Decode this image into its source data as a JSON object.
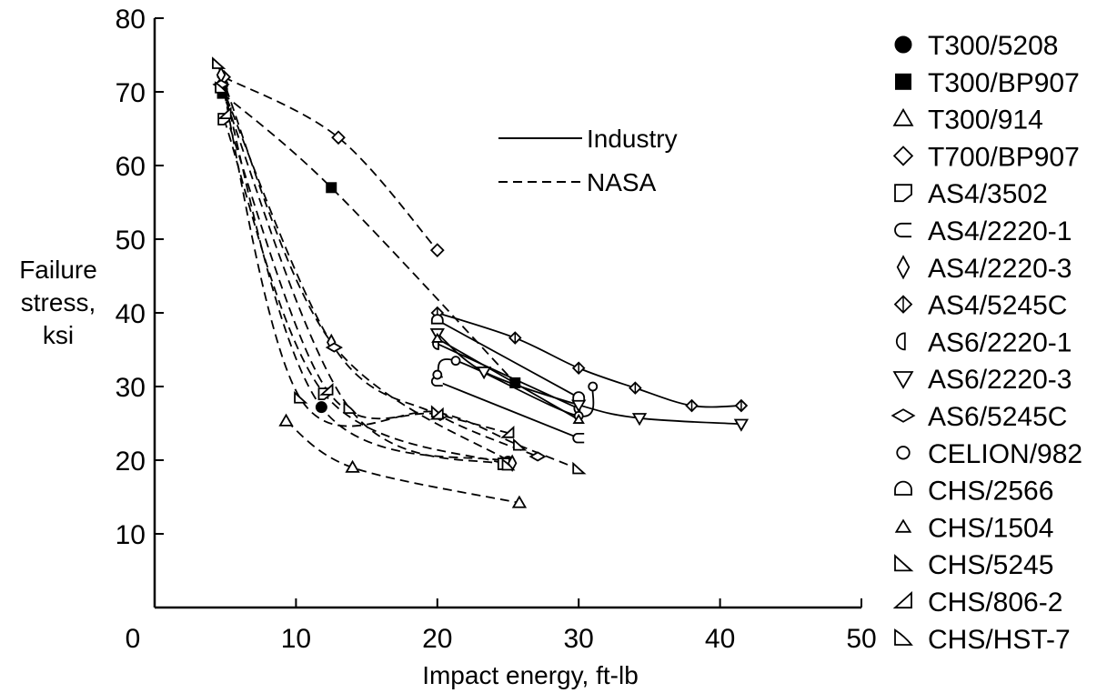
{
  "chart_data": {
    "type": "scatter",
    "xlabel": "Impact energy, ft-lb",
    "ylabel_lines": [
      "Failure",
      "stress,",
      "ksi"
    ],
    "xlim": [
      0,
      50
    ],
    "ylim": [
      0,
      80
    ],
    "x_ticks": [
      "0",
      "10",
      "20",
      "30",
      "40",
      "50"
    ],
    "y_ticks": [
      "10",
      "20",
      "30",
      "40",
      "50",
      "60",
      "70",
      "80"
    ],
    "grid": false,
    "legend_placement": "right",
    "line_key": [
      {
        "label": "Industry",
        "style": "solid"
      },
      {
        "label": "NASA",
        "style": "dashed"
      }
    ],
    "series": [
      {
        "name": "T300/5208",
        "marker": "filled-circle",
        "style": "dashed",
        "points": [
          [
            4.8,
            71
          ],
          [
            11.8,
            27.2
          ],
          [
            25,
            19.8
          ]
        ]
      },
      {
        "name": "T300/BP907",
        "marker": "filled-square",
        "style": "dashed",
        "points": [
          [
            4.8,
            69.8
          ],
          [
            12.5,
            57
          ],
          [
            25.5,
            30.5
          ]
        ]
      },
      {
        "name": "T300/914",
        "marker": "triangle-up",
        "style": "dashed",
        "points": [
          [
            9.3,
            25.3
          ],
          [
            14,
            19
          ],
          [
            25.8,
            14.2
          ]
        ]
      },
      {
        "name": "T700/BP907",
        "marker": "diamond",
        "style": "dashed",
        "points": [
          [
            4.9,
            72
          ],
          [
            13,
            63.8
          ],
          [
            20,
            48.5
          ]
        ]
      },
      {
        "name": "AS4/3502",
        "marker": "half-square",
        "style": "dashed",
        "points": [
          [
            4.9,
            66.3
          ],
          [
            12,
            29
          ],
          [
            24.7,
            19.5
          ]
        ]
      },
      {
        "name": "AS4/2220-1",
        "marker": "half-square-left",
        "style": "solid",
        "points": [
          [
            20,
            30.7
          ],
          [
            30,
            23
          ]
        ]
      },
      {
        "name": "AS4/2220-3",
        "marker": "tall-diamond",
        "style": "dashed",
        "points": [
          [
            4.7,
            72.3
          ],
          [
            12.5,
            36
          ],
          [
            25.3,
            19.6
          ]
        ]
      },
      {
        "name": "AS4/5245C",
        "marker": "half-diamond",
        "style": "solid",
        "points": [
          [
            20,
            40
          ],
          [
            25.5,
            36.6
          ],
          [
            30,
            32.5
          ],
          [
            34,
            29.8
          ],
          [
            38,
            27.4
          ],
          [
            41.5,
            27.4
          ]
        ]
      },
      {
        "name": "AS6/2220-1",
        "marker": "half-circle-left",
        "style": "solid",
        "points": [
          [
            20,
            35.8
          ],
          [
            30,
            27
          ]
        ]
      },
      {
        "name": "AS6/2220-3",
        "marker": "triangle-down",
        "style": "solid",
        "points": [
          [
            20,
            37.2
          ],
          [
            23.3,
            32
          ],
          [
            30,
            27.5
          ],
          [
            34.3,
            25.7
          ],
          [
            41.5,
            24.9
          ]
        ]
      },
      {
        "name": "AS6/5245C",
        "marker": "flat-diamond",
        "style": "dashed",
        "points": [
          [
            4.7,
            71
          ],
          [
            12.7,
            35.3
          ],
          [
            20.2,
            26
          ],
          [
            27.1,
            20.5
          ]
        ]
      },
      {
        "name": "CELION/982",
        "marker": "small-circle",
        "style": "solid",
        "points": [
          [
            20,
            31.6
          ],
          [
            21.3,
            33.5
          ],
          [
            30,
            26
          ],
          [
            31,
            30
          ]
        ]
      },
      {
        "name": "CHS/2566",
        "marker": "half-circle-bottom",
        "style": "solid",
        "points": [
          [
            20,
            39
          ],
          [
            30,
            28.5
          ]
        ]
      },
      {
        "name": "CHS/1504",
        "marker": "small-triangle",
        "style": "solid",
        "points": [
          [
            20,
            36.5
          ],
          [
            30,
            25.5
          ]
        ]
      },
      {
        "name": "CHS/5245",
        "marker": "right-triangle",
        "style": "dashed",
        "points": [
          [
            4.5,
            73.8
          ],
          [
            10.3,
            28.4
          ],
          [
            20,
            26.5
          ],
          [
            25.8,
            22
          ],
          [
            30,
            18.8
          ]
        ]
      },
      {
        "name": "CHS/806-2",
        "marker": "left-triangle",
        "style": "dashed",
        "points": [
          [
            5,
            67
          ],
          [
            12.2,
            29.5
          ],
          [
            20,
            26.2
          ],
          [
            25,
            23.7
          ]
        ]
      },
      {
        "name": "CHS/HST-7",
        "marker": "right-triangle-open",
        "style": "dashed",
        "points": [
          [
            4.7,
            70.5
          ],
          [
            13.8,
            27
          ],
          [
            25,
            19.3
          ]
        ]
      }
    ]
  }
}
